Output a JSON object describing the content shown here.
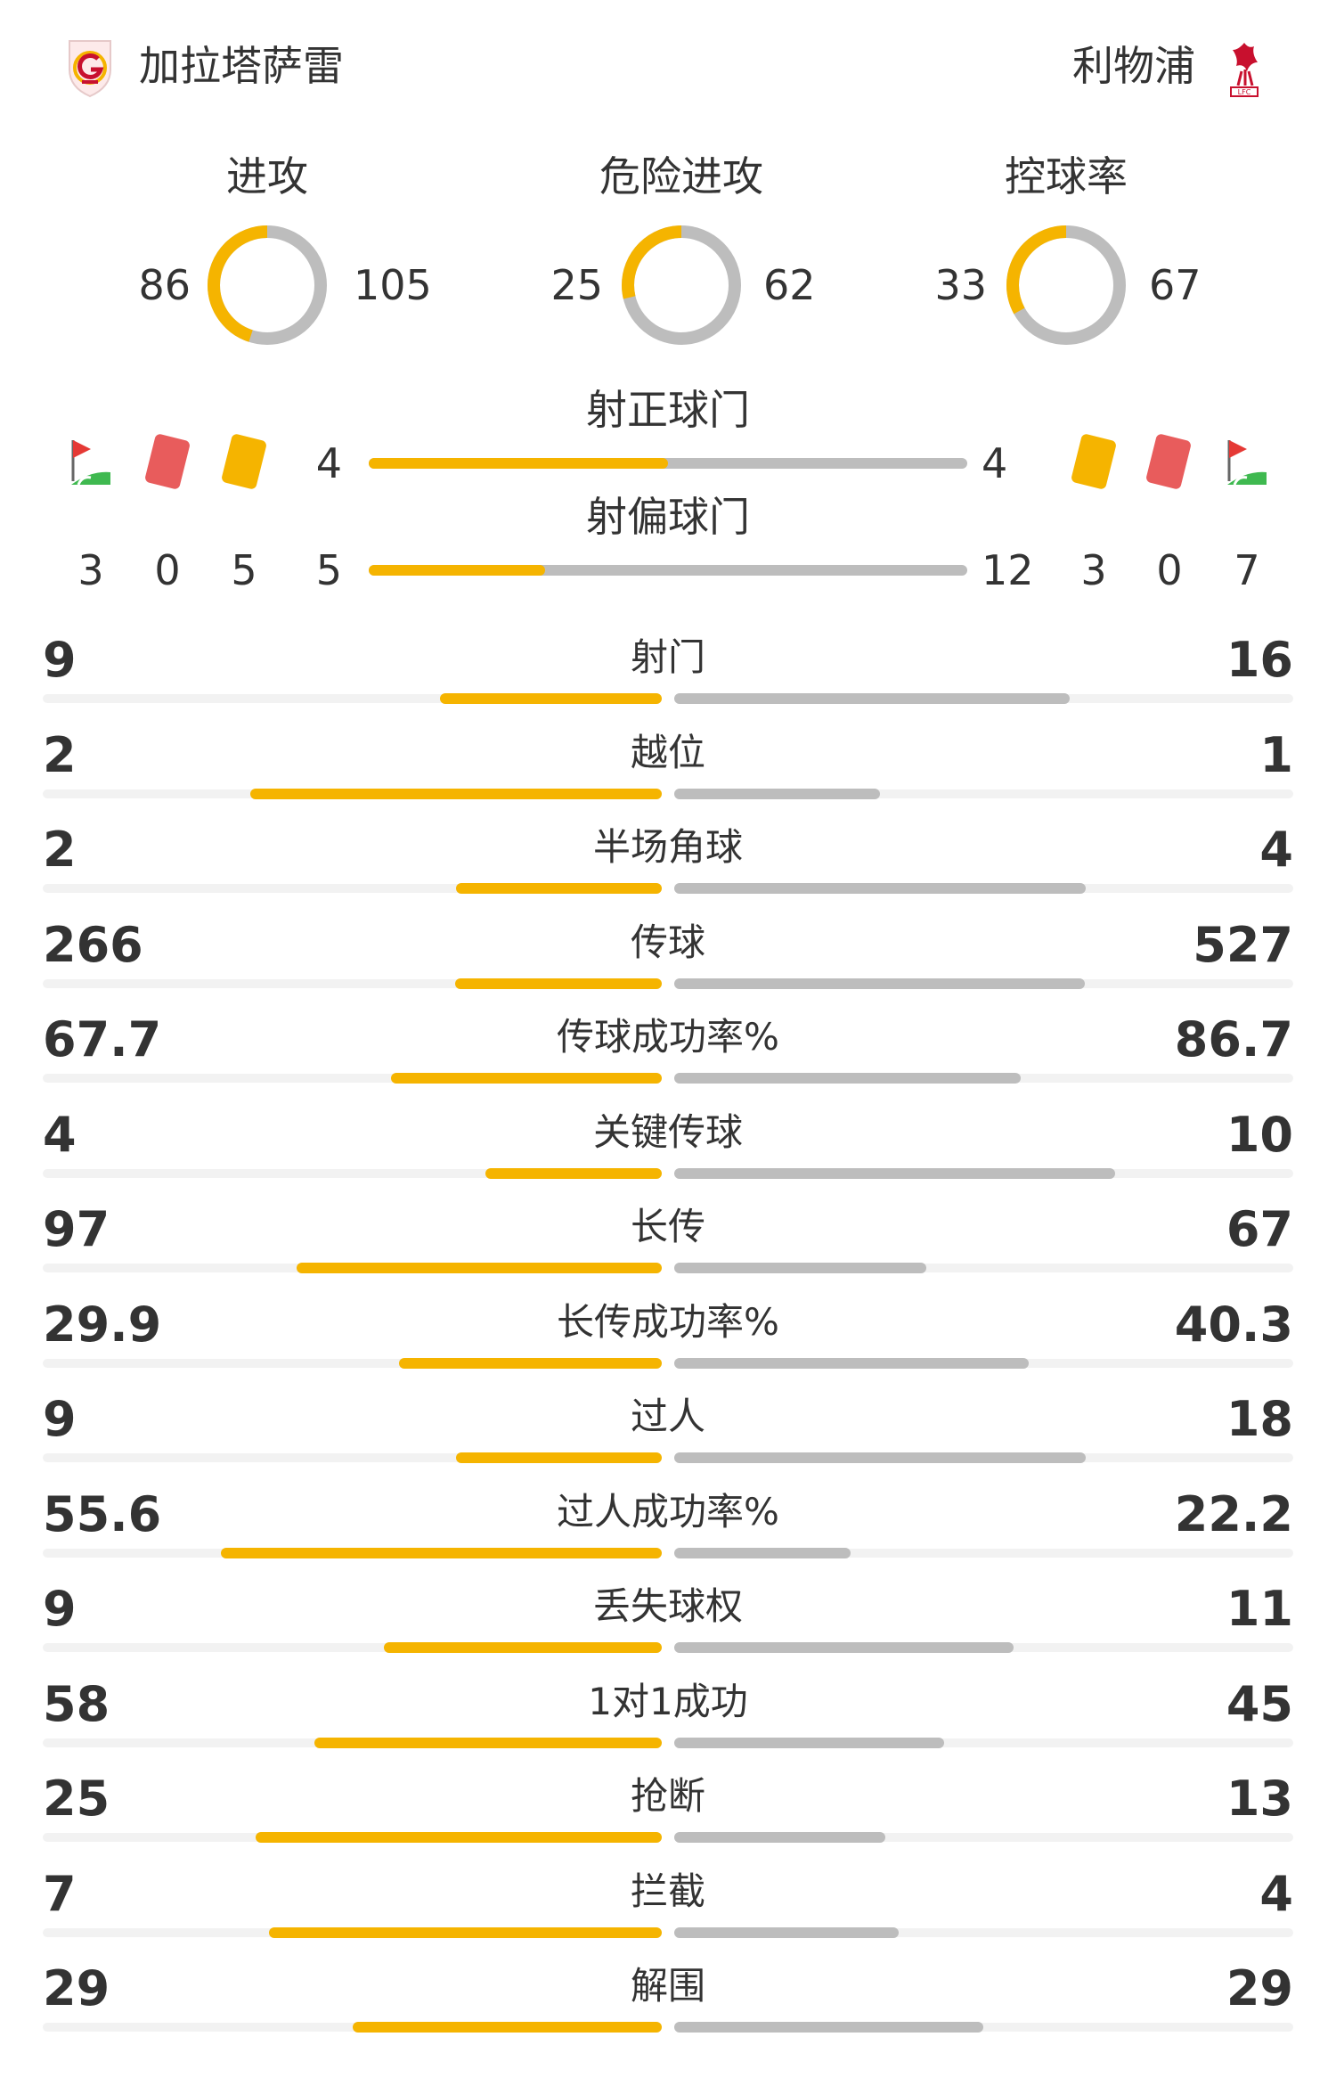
{
  "colors": {
    "home": "#f5b400",
    "away": "#bdbdbd",
    "track": "#f2f2f2",
    "text": "#333333"
  },
  "header": {
    "home": {
      "name": "加拉塔萨雷",
      "logo_icon": "galatasaray-crest-icon"
    },
    "away": {
      "name": "利物浦",
      "logo_icon": "liverpool-crest-icon"
    }
  },
  "donuts": [
    {
      "label": "进攻",
      "home": "86",
      "away": "105",
      "home_share": 0.45
    },
    {
      "label": "危险进攻",
      "home": "25",
      "away": "62",
      "home_share": 0.287
    },
    {
      "label": "控球率",
      "home": "33",
      "away": "67",
      "home_share": 0.33
    }
  ],
  "shots": [
    {
      "label": "射正球门",
      "home": "4",
      "away": "4",
      "home_share": 0.5
    },
    {
      "label": "射偏球门",
      "home": "5",
      "away": "12",
      "home_share": 0.294
    }
  ],
  "cards": {
    "home": {
      "corners": "3",
      "red": "0",
      "yellow": "5"
    },
    "away": {
      "yellow": "3",
      "red": "0",
      "corners": "7"
    },
    "icons": [
      "corner-flag-icon",
      "red-card-icon",
      "yellow-card-icon"
    ]
  },
  "stats": [
    {
      "label": "射门",
      "home": "9",
      "away": "16",
      "home_frac": 0.36,
      "away_frac": 0.64
    },
    {
      "label": "越位",
      "home": "2",
      "away": "1",
      "home_frac": 0.667,
      "away_frac": 0.333
    },
    {
      "label": "半场角球",
      "home": "2",
      "away": "4",
      "home_frac": 0.333,
      "away_frac": 0.667
    },
    {
      "label": "传球",
      "home": "266",
      "away": "527",
      "home_frac": 0.335,
      "away_frac": 0.665
    },
    {
      "label": "传球成功率%",
      "home": "67.7",
      "away": "86.7",
      "home_frac": 0.438,
      "away_frac": 0.562
    },
    {
      "label": "关键传球",
      "home": "4",
      "away": "10",
      "home_frac": 0.286,
      "away_frac": 0.714
    },
    {
      "label": "长传",
      "home": "97",
      "away": "67",
      "home_frac": 0.591,
      "away_frac": 0.409
    },
    {
      "label": "长传成功率%",
      "home": "29.9",
      "away": "40.3",
      "home_frac": 0.426,
      "away_frac": 0.574
    },
    {
      "label": "过人",
      "home": "9",
      "away": "18",
      "home_frac": 0.333,
      "away_frac": 0.667
    },
    {
      "label": "过人成功率%",
      "home": "55.6",
      "away": "22.2",
      "home_frac": 0.715,
      "away_frac": 0.285
    },
    {
      "label": "丢失球权",
      "home": "9",
      "away": "11",
      "home_frac": 0.45,
      "away_frac": 0.55
    },
    {
      "label": "1对1成功",
      "home": "58",
      "away": "45",
      "home_frac": 0.563,
      "away_frac": 0.437
    },
    {
      "label": "抢断",
      "home": "25",
      "away": "13",
      "home_frac": 0.658,
      "away_frac": 0.342
    },
    {
      "label": "拦截",
      "home": "7",
      "away": "4",
      "home_frac": 0.636,
      "away_frac": 0.364
    },
    {
      "label": "解围",
      "home": "29",
      "away": "29",
      "home_frac": 0.5,
      "away_frac": 0.5
    }
  ]
}
